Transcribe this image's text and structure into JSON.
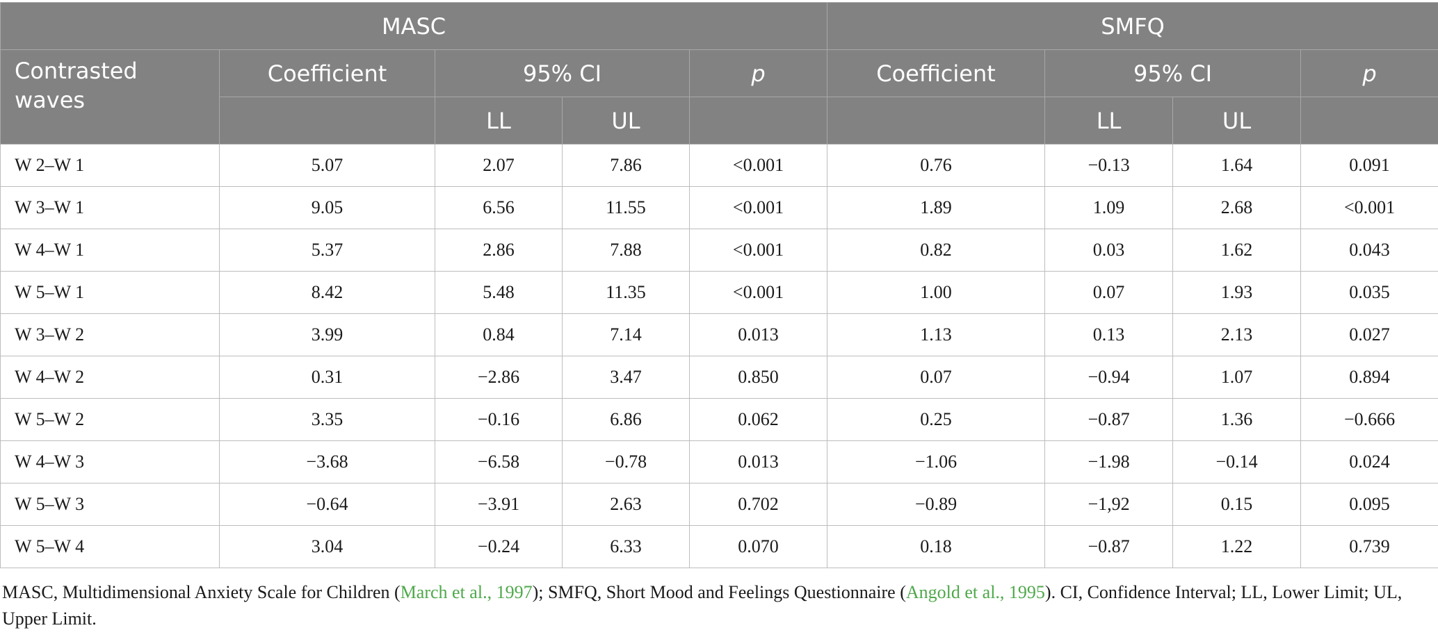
{
  "table": {
    "group_headers": {
      "masc": "MASC",
      "smfq": "SMFQ"
    },
    "columns": {
      "contrasted": "Contrasted waves",
      "masc_coef": "Coefficient",
      "masc_ci": "95% CI",
      "masc_p": "p",
      "smfq_coef": "Coefficient",
      "smfq_ci": "95% CI",
      "smfq_p": "p",
      "masc_ll": "LL",
      "masc_ul": "UL",
      "smfq_ll": "LL",
      "smfq_ul": "UL"
    },
    "rows": [
      [
        "W 2–W 1",
        "5.07",
        "2.07",
        "7.86",
        "<0.001",
        "0.76",
        "−0.13",
        "1.64",
        "0.091"
      ],
      [
        "W 3–W 1",
        "9.05",
        "6.56",
        "11.55",
        "<0.001",
        "1.89",
        "1.09",
        "2.68",
        "<0.001"
      ],
      [
        "W 4–W 1",
        "5.37",
        "2.86",
        "7.88",
        "<0.001",
        "0.82",
        "0.03",
        "1.62",
        "0.043"
      ],
      [
        "W 5–W 1",
        "8.42",
        "5.48",
        "11.35",
        "<0.001",
        "1.00",
        "0.07",
        "1.93",
        "0.035"
      ],
      [
        "W 3–W 2",
        "3.99",
        "0.84",
        "7.14",
        "0.013",
        "1.13",
        "0.13",
        "2.13",
        "0.027"
      ],
      [
        "W 4–W 2",
        "0.31",
        "−2.86",
        "3.47",
        "0.850",
        "0.07",
        "−0.94",
        "1.07",
        "0.894"
      ],
      [
        "W 5–W 2",
        "3.35",
        "−0.16",
        "6.86",
        "0.062",
        "0.25",
        "−0.87",
        "1.36",
        "−0.666"
      ],
      [
        "W 4–W 3",
        "−3.68",
        "−6.58",
        "−0.78",
        "0.013",
        "−1.06",
        "−1.98",
        "−0.14",
        "0.024"
      ],
      [
        "W 5–W 3",
        "−0.64",
        "−3.91",
        "2.63",
        "0.702",
        "−0.89",
        "−1,92",
        "0.15",
        "0.095"
      ],
      [
        "W 5–W 4",
        "3.04",
        "−0.24",
        "6.33",
        "0.070",
        "0.18",
        "−0.87",
        "1.22",
        "0.739"
      ]
    ]
  },
  "footnote": {
    "part1": "MASC, Multidimensional Anxiety Scale for Children (",
    "cite1": "March et al., 1997",
    "part2": "); SMFQ, Short Mood and Feelings Questionnaire (",
    "cite2": "Angold et al., 1995",
    "part3": "). CI, Confidence Interval; LL, Lower Limit; UL, Upper Limit."
  }
}
